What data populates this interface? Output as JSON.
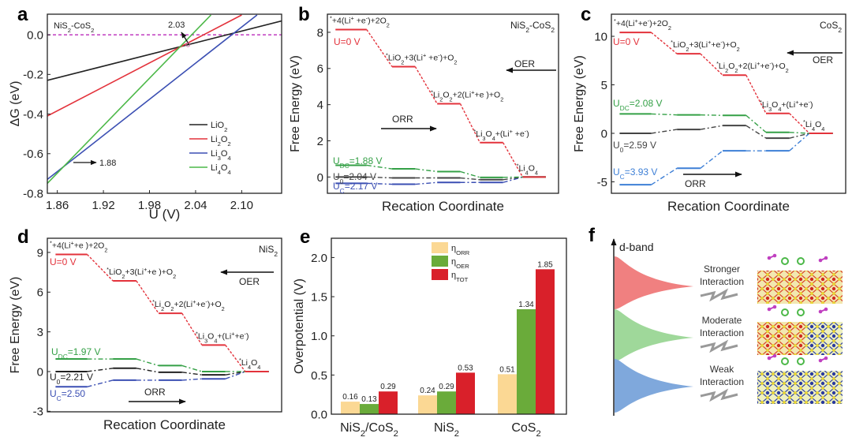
{
  "figure": {
    "panel_labels": [
      "a",
      "b",
      "c",
      "d",
      "e",
      "f"
    ],
    "watermark": "大数跨境"
  },
  "colors": {
    "red": "#e3323b",
    "green": "#34a046",
    "black": "#333333",
    "blue": "#3b4fb3",
    "blue_light": "#3d7fd6",
    "magenta": "#c03cc0",
    "orr": "#fbd894",
    "oer": "#6aab3a",
    "tot": "#d9202a"
  },
  "chart_data": [
    {
      "panel": "a",
      "type": "line",
      "title": "NiS_2-CoS_2",
      "xlabel": "U (V)",
      "ylabel": "ΔG (eV)",
      "xlim": [
        1.847,
        2.152
      ],
      "ylim": [
        -0.8,
        0.104
      ],
      "xticks": [
        1.86,
        1.92,
        1.98,
        2.04,
        2.1
      ],
      "xtick_labels": [
        "1.86",
        "1.92",
        "1.98",
        "2.04",
        "2.10"
      ],
      "yticks": [
        0.0,
        -0.2,
        -0.4,
        -0.6,
        -0.8
      ],
      "ytick_labels": [
        "0.0",
        "-0.2",
        "-0.4",
        "-0.6",
        "-0.8"
      ],
      "reference_line_y": 0,
      "legend_position": "right",
      "series": [
        {
          "name": "LiO_2",
          "color": "#222222",
          "x": [
            1.847,
            2.152
          ],
          "y": [
            -0.23,
            0.07
          ]
        },
        {
          "name": "Li_2O_2",
          "color": "#e3323b",
          "x": [
            1.847,
            2.1
          ],
          "y": [
            -0.41,
            0.1
          ]
        },
        {
          "name": "Li_3O_4",
          "color": "#3b4fb3",
          "x": [
            1.847,
            2.12
          ],
          "y": [
            -0.73,
            0.1
          ]
        },
        {
          "name": "Li_4O_4",
          "color": "#4cb848",
          "x": [
            1.847,
            2.06
          ],
          "y": [
            -0.75,
            0.1
          ]
        }
      ],
      "annotations": [
        {
          "text": "2.03"
        },
        {
          "text": "1.88"
        }
      ]
    },
    {
      "panel": "b",
      "type": "line",
      "subtype": "free-energy-diagram",
      "title": "NiS_2-CoS_2",
      "xlabel": "Recation Coordinate",
      "ylabel": "Free Energy (eV)",
      "ylim": [
        -0.9,
        9
      ],
      "yticks": [
        0,
        2,
        4,
        6,
        8
      ],
      "ytick_labels": [
        "0",
        "2",
        "4",
        "6",
        "8"
      ],
      "species": [
        "^*+4(Li^+ +e^-)+2O_2",
        "^*LiO_2+3(Li^+ +e^-)+O_2",
        "^*Li_2O_2+2(Li^++e )+O_2",
        "^*Li_3O_4+(Li^+ +e^-)",
        "^*Li_4O_4"
      ],
      "series": [
        {
          "name": "U=0 V",
          "color": "#e3323b",
          "values": [
            8.15,
            6.1,
            4.05,
            1.9,
            0
          ]
        },
        {
          "name": "U_{DC}=1.88 V",
          "color": "#34a046",
          "values": [
            0.65,
            0.45,
            0.3,
            -0.02,
            0
          ]
        },
        {
          "name": "U_0=2.04 V",
          "color": "#444444",
          "values": [
            0,
            -0.05,
            -0.05,
            -0.15,
            0
          ]
        },
        {
          "name": "U_C=2.17 V",
          "color": "#3b4fb3",
          "values": [
            -0.35,
            -0.4,
            -0.3,
            -0.3,
            0
          ]
        }
      ],
      "arrows": {
        "oer": "OER",
        "orr": "ORR"
      }
    },
    {
      "panel": "c",
      "type": "line",
      "subtype": "free-energy-diagram",
      "title": "CoS_2",
      "xlabel": "Recation Coordinate",
      "ylabel": "Free Energy (eV)",
      "ylim": [
        -6.18,
        12.28
      ],
      "yticks": [
        -5,
        0,
        5,
        10
      ],
      "ytick_labels": [
        "-5",
        "0",
        "5",
        "10"
      ],
      "species": [
        "^*+4(Li^++e^-)+2O_2",
        "^*LiO_2+3(Li^++e^-)+O_2",
        "^*Li_2O_2+2(Li^++e^-)+O_2",
        "^*Li_3O_4+(Li^++e^-)",
        "^*Li_4O_4"
      ],
      "series": [
        {
          "name": "U=0 V",
          "color": "#e3323b",
          "values": [
            10.4,
            8.2,
            6.0,
            2.05,
            0
          ]
        },
        {
          "name": "U_{DC}=2.08 V",
          "color": "#34a046",
          "values": [
            2.0,
            1.9,
            1.85,
            0.1,
            0
          ]
        },
        {
          "name": "U_0=2.59 V",
          "color": "#444444",
          "values": [
            0,
            0.4,
            0.8,
            -0.5,
            0
          ]
        },
        {
          "name": "U_C=3.93 V",
          "color": "#3d7fd6",
          "values": [
            -5.3,
            -3.6,
            -1.8,
            -1.8,
            0
          ]
        }
      ],
      "arrows": {
        "oer": "OER",
        "orr": "ORR"
      }
    },
    {
      "panel": "d",
      "type": "line",
      "subtype": "free-energy-diagram",
      "title": "NiS_2",
      "xlabel": "Recation Coordinate",
      "ylabel": "Free Energy (eV)",
      "ylim": [
        -3.04,
        10.07
      ],
      "yticks": [
        -3,
        0,
        3,
        6,
        9
      ],
      "ytick_labels": [
        "-3",
        "0",
        "3",
        "6",
        "9"
      ],
      "species": [
        "^*+4(Li^++e )+2O_2",
        "^*LiO_2+3(Li^++e )+O_2",
        "^*Li_2O_2+2(Li^++e^-)+O_2",
        "^*Li_3O_4+(Li^++e^-)",
        "^*Li_4O_4"
      ],
      "series": [
        {
          "name": "U=0 V",
          "color": "#e3323b",
          "values": [
            8.85,
            6.85,
            4.4,
            2.0,
            0
          ]
        },
        {
          "name": "U_{DC}=1.97 V",
          "color": "#34a046",
          "values": [
            0.95,
            0.95,
            0.45,
            0,
            0
          ]
        },
        {
          "name": "U_0=2.21 V",
          "color": "#222222",
          "values": [
            0,
            0.25,
            -0.05,
            -0.25,
            0
          ]
        },
        {
          "name": "U_C=2.50",
          "color": "#3b4fb3",
          "values": [
            -1.15,
            -0.65,
            -0.65,
            -0.55,
            0
          ]
        }
      ],
      "arrows": {
        "oer": "OER",
        "orr": "ORR"
      }
    },
    {
      "panel": "e",
      "type": "bar",
      "xlabel": "",
      "ylabel": "Overpotential (V)",
      "ylim": [
        0,
        2.246
      ],
      "yticks": [
        0,
        0.5,
        1.0,
        1.5,
        2.0
      ],
      "ytick_labels": [
        "0.0",
        "0.5",
        "1.0",
        "1.5",
        "2.0"
      ],
      "categories": [
        "NiS_2/CoS_2",
        "NiS_2",
        "CoS_2"
      ],
      "legend_position": "top-center",
      "series": [
        {
          "name": "η_{ORR}",
          "color": "#fbd894",
          "values": [
            0.16,
            0.24,
            0.51
          ],
          "labels": [
            "0.16",
            "0.24",
            "0.51"
          ]
        },
        {
          "name": "η_{OER}",
          "color": "#6aab3a",
          "values": [
            0.13,
            0.29,
            1.34
          ],
          "labels": [
            "0.13",
            "0.29",
            "1.34"
          ]
        },
        {
          "name": "η_{TOT}",
          "color": "#d9202a",
          "values": [
            0.29,
            0.53,
            1.85
          ],
          "labels": [
            "0.29",
            "0.53",
            "1.85"
          ]
        }
      ]
    }
  ],
  "schematic": {
    "axis_label": "d-band",
    "levels": [
      {
        "label_line1": "Stronger",
        "label_line2": "Interaction",
        "color": "#f08080"
      },
      {
        "label_line1": "Moderate",
        "label_line2": "Interaction",
        "color": "#9fd89a"
      },
      {
        "label_line1": "Weak",
        "label_line2": "Interaction",
        "color": "#7fa8dc"
      }
    ]
  }
}
